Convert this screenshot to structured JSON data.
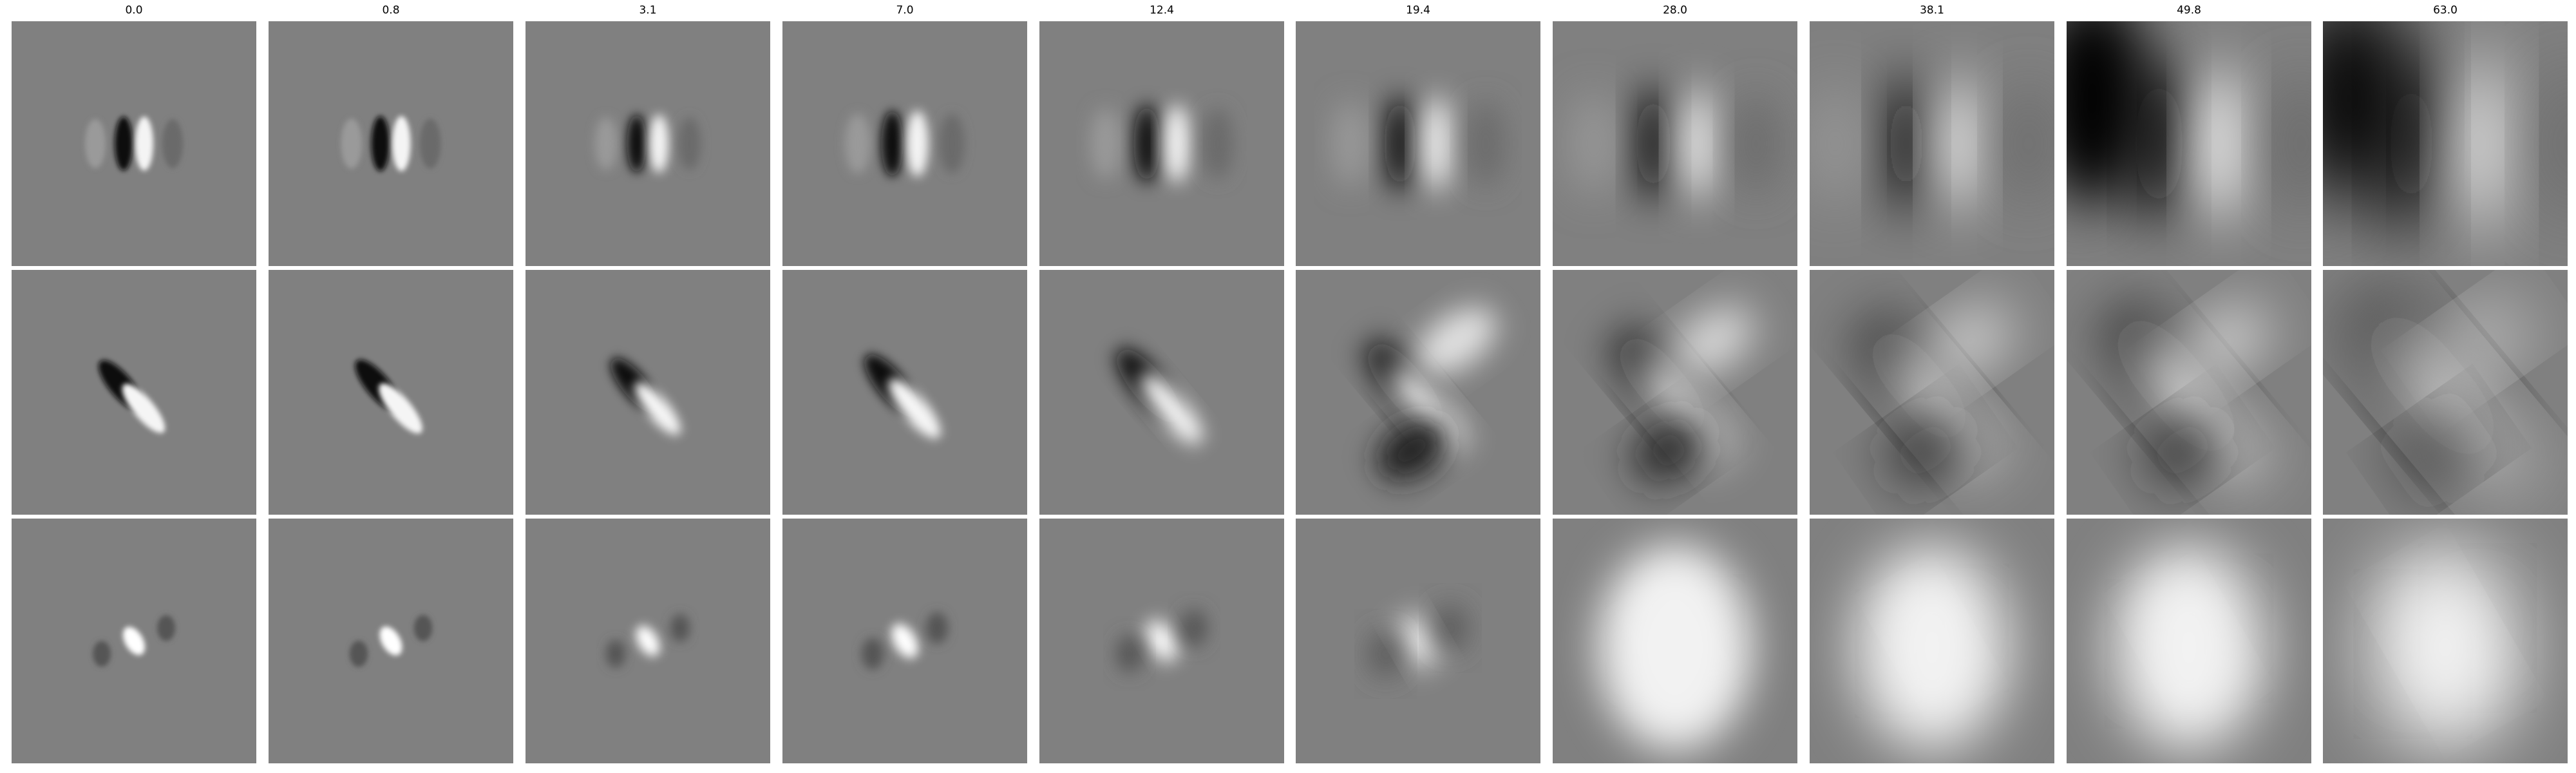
{
  "column_titles": [
    "0.0",
    "0.8",
    "3.1",
    "7.0",
    "12.4",
    "19.4",
    "28.0",
    "38.1",
    "49.8",
    "63.0"
  ],
  "background": "#808080"
}
